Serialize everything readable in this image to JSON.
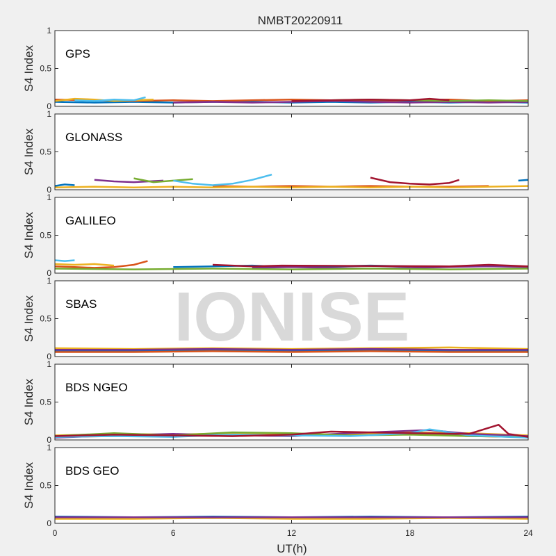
{
  "chart_data": {
    "type": "line",
    "title": "NMBT20220911",
    "watermark": "IONISE",
    "xlabel": "UT(h)",
    "ylabel": "S4 Index",
    "xlim": [
      0,
      24
    ],
    "ylim": [
      0,
      1
    ],
    "xticks": [
      "0",
      "6",
      "12",
      "18",
      "24"
    ],
    "yticks": [
      "0",
      "0.5",
      "1"
    ],
    "colors": [
      "#0072bd",
      "#d95319",
      "#edb120",
      "#7e2f8e",
      "#77ac30",
      "#4dbeee",
      "#a2142f"
    ],
    "panels": [
      {
        "label": "GPS",
        "series": [
          {
            "x": [
              0,
              2,
              4,
              6,
              8,
              10,
              12,
              14,
              16,
              18,
              20,
              22,
              24
            ],
            "y": [
              0.06,
              0.05,
              0.06,
              0.05,
              0.06,
              0.06,
              0.05,
              0.06,
              0.05,
              0.06,
              0.05,
              0.06,
              0.05
            ]
          },
          {
            "x": [
              0,
              2,
              4,
              6,
              8,
              10,
              12,
              14,
              16,
              18,
              20,
              22,
              24
            ],
            "y": [
              0.09,
              0.08,
              0.07,
              0.08,
              0.07,
              0.08,
              0.09,
              0.08,
              0.07,
              0.08,
              0.09,
              0.07,
              0.08
            ]
          },
          {
            "x": [
              0,
              1,
              2,
              3,
              4,
              5
            ],
            "y": [
              0.07,
              0.1,
              0.09,
              0.07,
              0.08,
              0.09
            ]
          },
          {
            "x": [
              6,
              8,
              10,
              12,
              14,
              16,
              18,
              20,
              22,
              24
            ],
            "y": [
              0.05,
              0.06,
              0.05,
              0.06,
              0.07,
              0.06,
              0.05,
              0.06,
              0.05,
              0.06
            ]
          },
          {
            "x": [
              14,
              16,
              18,
              20,
              22,
              24
            ],
            "y": [
              0.08,
              0.09,
              0.08,
              0.07,
              0.08,
              0.07
            ]
          },
          {
            "x": [
              1,
              2,
              3,
              4,
              4.6
            ],
            "y": [
              0.08,
              0.07,
              0.09,
              0.08,
              0.12
            ]
          },
          {
            "x": [
              12,
              14,
              16,
              18,
              19,
              20
            ],
            "y": [
              0.07,
              0.08,
              0.09,
              0.08,
              0.1,
              0.08
            ]
          }
        ]
      },
      {
        "label": "GLONASS",
        "series": [
          {
            "x": [
              0,
              0.5,
              1
            ],
            "y": [
              0.05,
              0.07,
              0.06
            ]
          },
          {
            "x": [
              8,
              10,
              12,
              14,
              16,
              18,
              20,
              22
            ],
            "y": [
              0.05,
              0.04,
              0.05,
              0.04,
              0.05,
              0.04,
              0.04,
              0.05
            ]
          },
          {
            "x": [
              0,
              2,
              4,
              6,
              8,
              10,
              12,
              14,
              16,
              18,
              20,
              22,
              24
            ],
            "y": [
              0.03,
              0.04,
              0.03,
              0.04,
              0.03,
              0.04,
              0.03,
              0.04,
              0.03,
              0.04,
              0.03,
              0.04,
              0.05
            ]
          },
          {
            "x": [
              2,
              3,
              4,
              5.5
            ],
            "y": [
              0.13,
              0.11,
              0.1,
              0.12
            ]
          },
          {
            "x": [
              4,
              5,
              6,
              7
            ],
            "y": [
              0.15,
              0.1,
              0.12,
              0.14
            ]
          },
          {
            "x": [
              6,
              7,
              8,
              9,
              10,
              11
            ],
            "y": [
              0.12,
              0.08,
              0.06,
              0.08,
              0.13,
              0.2
            ]
          },
          {
            "x": [
              16,
              17,
              18,
              19,
              20,
              20.5
            ],
            "y": [
              0.16,
              0.1,
              0.08,
              0.07,
              0.09,
              0.13
            ]
          },
          {
            "x": [
              23.5,
              24
            ],
            "y": [
              0.12,
              0.13
            ]
          }
        ]
      },
      {
        "label": "GALILEO",
        "series": [
          {
            "x": [
              6,
              8,
              10,
              12,
              14,
              16,
              18
            ],
            "y": [
              0.08,
              0.09,
              0.1,
              0.08,
              0.09,
              0.1,
              0.09
            ]
          },
          {
            "x": [
              0,
              1,
              2,
              3,
              4,
              4.7
            ],
            "y": [
              0.09,
              0.08,
              0.07,
              0.08,
              0.11,
              0.16
            ]
          },
          {
            "x": [
              0,
              1,
              2,
              3
            ],
            "y": [
              0.12,
              0.11,
              0.12,
              0.1
            ]
          },
          {
            "x": [
              10,
              12,
              14,
              16,
              18,
              20,
              22,
              24
            ],
            "y": [
              0.07,
              0.08,
              0.07,
              0.06,
              0.07,
              0.08,
              0.09,
              0.08
            ]
          },
          {
            "x": [
              0,
              4,
              8,
              12,
              16,
              20,
              24
            ],
            "y": [
              0.06,
              0.05,
              0.06,
              0.05,
              0.06,
              0.05,
              0.06
            ]
          },
          {
            "x": [
              0,
              0.5,
              1
            ],
            "y": [
              0.17,
              0.16,
              0.17
            ]
          },
          {
            "x": [
              8,
              10,
              11.5,
              20,
              22,
              24
            ],
            "y": [
              0.11,
              0.09,
              0.1,
              0.09,
              0.11,
              0.09
            ]
          }
        ]
      },
      {
        "label": "SBAS",
        "series": [
          {
            "x": [
              0,
              4,
              8,
              12,
              16,
              20,
              24
            ],
            "y": [
              0.08,
              0.07,
              0.08,
              0.07,
              0.08,
              0.07,
              0.08
            ]
          },
          {
            "x": [
              0,
              4,
              8,
              12,
              16,
              20,
              24
            ],
            "y": [
              0.06,
              0.06,
              0.07,
              0.06,
              0.07,
              0.06,
              0.06
            ]
          },
          {
            "x": [
              0,
              4,
              8,
              12,
              16,
              20,
              24
            ],
            "y": [
              0.11,
              0.1,
              0.11,
              0.1,
              0.11,
              0.12,
              0.1
            ]
          },
          {
            "x": [
              0,
              4,
              8,
              12,
              16,
              20,
              24
            ],
            "y": [
              0.09,
              0.09,
              0.1,
              0.09,
              0.1,
              0.09,
              0.09
            ]
          }
        ]
      },
      {
        "label": "BDS NGEO",
        "series": [
          {
            "x": [
              0,
              3,
              6,
              9,
              12,
              15,
              18,
              21,
              24
            ],
            "y": [
              0.05,
              0.06,
              0.05,
              0.07,
              0.06,
              0.08,
              0.09,
              0.07,
              0.05
            ]
          },
          {
            "x": [
              0,
              3,
              6,
              9,
              12,
              15,
              18,
              21,
              23.5,
              24
            ],
            "y": [
              0.04,
              0.05,
              0.06,
              0.05,
              0.07,
              0.06,
              0.08,
              0.05,
              0.04,
              0.05
            ]
          },
          {
            "x": [
              0,
              3,
              6,
              9,
              12,
              15,
              18,
              21,
              24
            ],
            "y": [
              0.06,
              0.08,
              0.07,
              0.09,
              0.08,
              0.07,
              0.1,
              0.09,
              0.06
            ]
          },
          {
            "x": [
              0,
              3,
              6,
              9,
              12,
              15,
              18,
              19,
              21,
              24
            ],
            "y": [
              0.03,
              0.06,
              0.08,
              0.06,
              0.05,
              0.09,
              0.12,
              0.13,
              0.08,
              0.05
            ]
          },
          {
            "x": [
              0,
              3,
              6,
              9,
              12,
              15,
              18,
              21,
              24
            ],
            "y": [
              0.05,
              0.09,
              0.06,
              0.1,
              0.09,
              0.06,
              0.07,
              0.05,
              0.04
            ]
          },
          {
            "x": [
              0,
              3,
              6,
              9,
              12,
              15,
              18,
              19,
              21,
              24
            ],
            "y": [
              0.04,
              0.05,
              0.04,
              0.07,
              0.06,
              0.05,
              0.09,
              0.14,
              0.06,
              0.03
            ]
          },
          {
            "x": [
              0,
              3,
              6,
              9,
              12,
              14,
              18,
              21,
              22.5,
              23,
              24
            ],
            "y": [
              0.05,
              0.07,
              0.06,
              0.05,
              0.07,
              0.11,
              0.09,
              0.08,
              0.2,
              0.08,
              0.04
            ]
          }
        ]
      },
      {
        "label": "BDS GEO",
        "series": [
          {
            "x": [
              0,
              4,
              8,
              12,
              16,
              20,
              24
            ],
            "y": [
              0.09,
              0.08,
              0.09,
              0.08,
              0.09,
              0.08,
              0.09
            ]
          },
          {
            "x": [
              0,
              4,
              8,
              12,
              16,
              20,
              24
            ],
            "y": [
              0.07,
              0.08,
              0.07,
              0.08,
              0.07,
              0.08,
              0.07
            ]
          },
          {
            "x": [
              0,
              4,
              8,
              12,
              16,
              20,
              24
            ],
            "y": [
              0.06,
              0.06,
              0.07,
              0.06,
              0.06,
              0.07,
              0.06
            ]
          },
          {
            "x": [
              0,
              4,
              8,
              12,
              16,
              20,
              24
            ],
            "y": [
              0.08,
              0.08,
              0.08,
              0.08,
              0.08,
              0.08,
              0.08
            ]
          }
        ]
      }
    ]
  }
}
